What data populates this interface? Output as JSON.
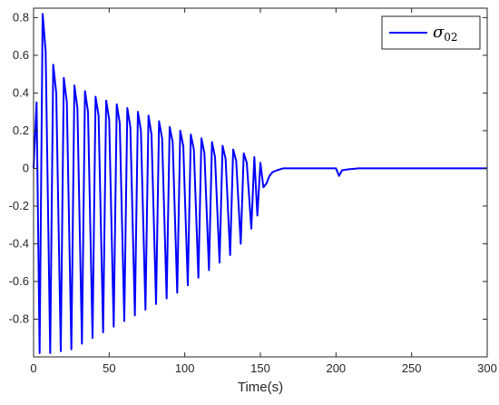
{
  "chart_data": {
    "type": "line",
    "title": "",
    "xlabel": "Time(s)",
    "ylabel": "",
    "xlim": [
      0,
      300
    ],
    "ylim": [
      -1.0,
      0.85
    ],
    "xticks": [
      "0",
      "50",
      "100",
      "150",
      "200",
      "250",
      "300"
    ],
    "yticks": [
      "-0.8",
      "-0.6",
      "-0.4",
      "-0.2",
      "0",
      "0.2",
      "0.4",
      "0.6",
      "0.8"
    ],
    "grid": false,
    "legend_position": "top-right",
    "series": [
      {
        "name": "σ02",
        "legend_symbol": "σ",
        "legend_subscript": "02",
        "color": "#0000ff",
        "x": [
          0,
          2,
          4,
          6,
          8,
          11,
          13,
          15,
          18,
          20,
          22,
          25,
          27,
          29,
          32,
          34,
          36,
          39,
          41,
          43,
          46,
          48,
          50,
          53,
          55,
          57,
          60,
          62,
          64,
          67,
          69,
          71,
          74,
          76,
          78,
          81,
          83,
          85,
          88,
          90,
          92,
          95,
          97,
          99,
          102,
          104,
          106,
          109,
          111,
          113,
          116,
          118,
          120,
          123,
          125,
          127,
          130,
          132,
          134,
          137,
          139,
          141,
          144,
          146,
          148,
          150,
          152,
          154,
          156,
          158,
          161,
          165,
          175,
          200,
          202,
          204,
          208,
          215,
          230,
          260,
          300
        ],
        "y": [
          0,
          0.35,
          -0.98,
          0.82,
          0.62,
          -0.98,
          0.55,
          0.4,
          -0.97,
          0.48,
          0.35,
          -0.96,
          0.44,
          0.32,
          -0.93,
          0.41,
          0.3,
          -0.9,
          0.38,
          0.28,
          -0.87,
          0.36,
          0.26,
          -0.84,
          0.34,
          0.24,
          -0.81,
          0.32,
          0.22,
          -0.78,
          0.3,
          0.2,
          -0.75,
          0.28,
          0.18,
          -0.72,
          0.25,
          0.16,
          -0.69,
          0.22,
          0.14,
          -0.66,
          0.2,
          0.12,
          -0.62,
          0.18,
          0.1,
          -0.58,
          0.16,
          0.08,
          -0.54,
          0.14,
          0.06,
          -0.5,
          0.12,
          0.05,
          -0.46,
          0.1,
          0.04,
          -0.4,
          0.08,
          0.03,
          -0.32,
          0.06,
          -0.25,
          0.03,
          -0.1,
          -0.08,
          -0.04,
          -0.02,
          -0.01,
          0.0,
          0.0,
          0.0,
          -0.04,
          -0.01,
          -0.005,
          0.0,
          0.0,
          0.0,
          0.0
        ]
      }
    ]
  }
}
